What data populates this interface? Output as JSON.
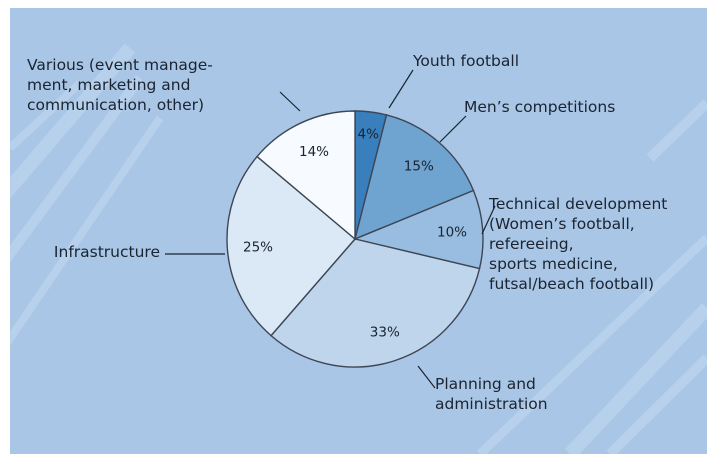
{
  "chart_data": {
    "type": "pie",
    "title": "",
    "start": "top",
    "direction": "clockwise",
    "slices": [
      {
        "label_lines": [
          "Youth football"
        ],
        "value": 4,
        "percent_label": "4%",
        "color": "#3a7fbd"
      },
      {
        "label_lines": [
          "Men’s competitions"
        ],
        "value": 15,
        "percent_label": "15%",
        "color": "#6fa3d0"
      },
      {
        "label_lines": [
          "Technical development",
          "(Women’s football,",
          "refereeing,",
          "sports medicine,",
          "futsal/beach football)"
        ],
        "value": 10,
        "percent_label": "10%",
        "color": "#98bde0"
      },
      {
        "label_lines": [
          "Planning and",
          "administration"
        ],
        "value": 33,
        "percent_label": "33%",
        "color": "#bed5ec"
      },
      {
        "label_lines": [
          "Infrastructure"
        ],
        "value": 25,
        "percent_label": "25%",
        "color": "#dbe8f5"
      },
      {
        "label_lines": [
          "Various (event manage-",
          "ment, marketing and",
          "communication, other)"
        ],
        "value": 14,
        "percent_label": "14%",
        "color": "#f7fbff"
      }
    ],
    "legend": "none",
    "colors": {
      "background": "#a9c6e6",
      "stroke": "#3d4654",
      "text": "#1b2430"
    }
  }
}
